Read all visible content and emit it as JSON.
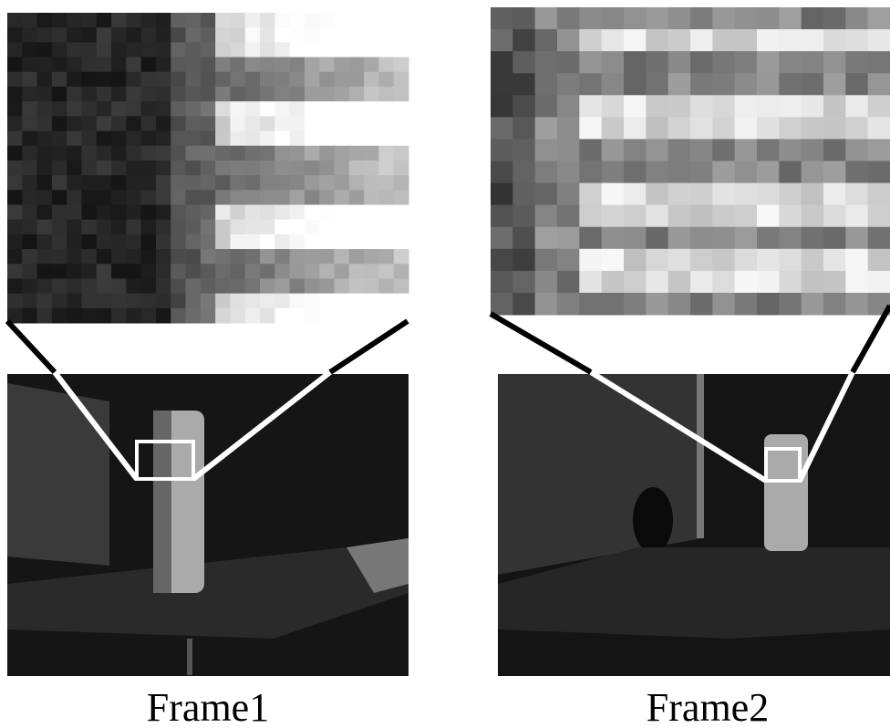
{
  "captions": [
    "Frame1",
    "Frame2"
  ]
}
